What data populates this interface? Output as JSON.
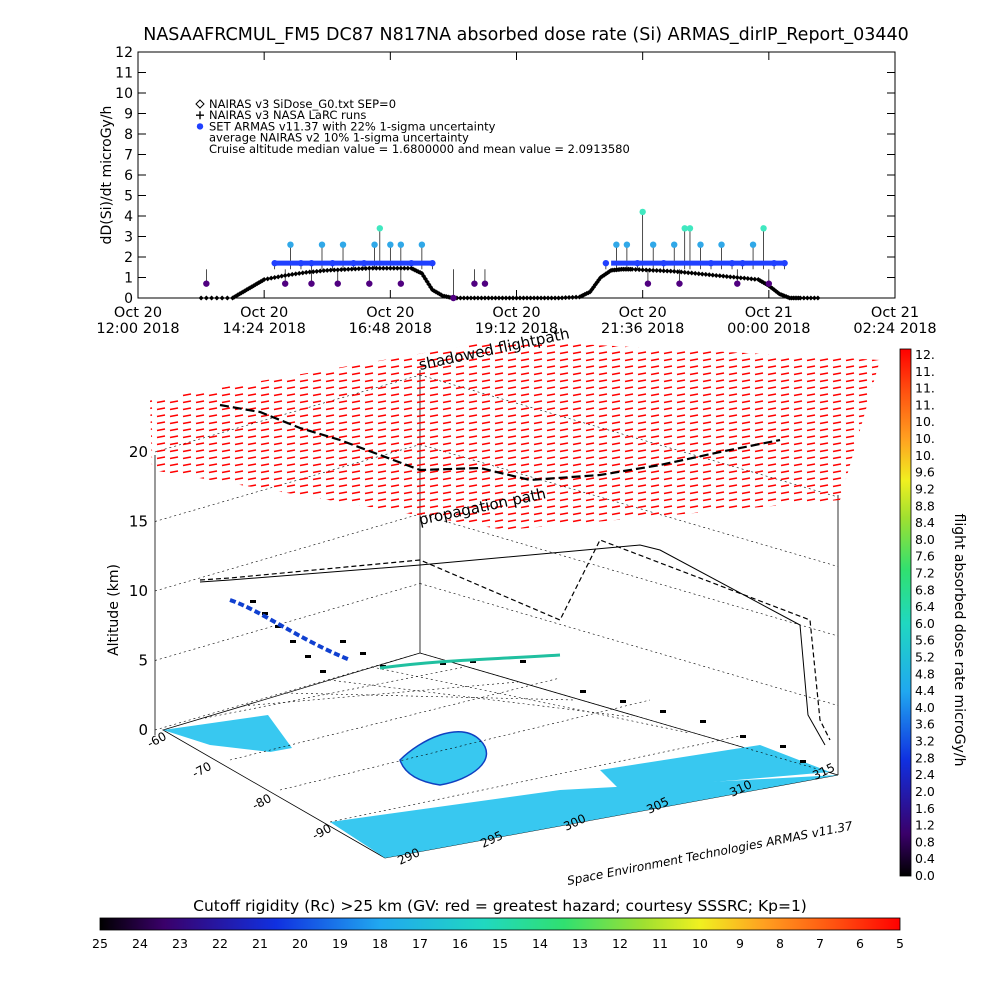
{
  "chart_data": [
    {
      "type": "scatter",
      "title": "NASAAFRCMUL_FM5 DC87 N817NA absorbed dose rate (Si) ARMAS_dirIP_Report_03440",
      "ylabel": "dD(Si)/dt microGy/h",
      "ylim": [
        0,
        12
      ],
      "yticks": [
        "0",
        "1",
        "2",
        "3",
        "4",
        "5",
        "6",
        "7",
        "8",
        "9",
        "10",
        "11",
        "12"
      ],
      "xlim_hours": [
        12.0,
        26.4
      ],
      "xticks": [
        {
          "line1": "Oct 20",
          "line2": "12:00 2018"
        },
        {
          "line1": "Oct 20",
          "line2": "14:24 2018"
        },
        {
          "line1": "Oct 20",
          "line2": "16:48 2018"
        },
        {
          "line1": "Oct 20",
          "line2": "19:12 2018"
        },
        {
          "line1": "Oct 20",
          "line2": "21:36 2018"
        },
        {
          "line1": "Oct 21",
          "line2": "00:00 2018"
        },
        {
          "line1": "Oct 21",
          "line2": "02:24 2018"
        }
      ],
      "legend": [
        {
          "symbol": "diamond",
          "text": "NAIRAS v3 SiDose_G0.txt SEP=0"
        },
        {
          "symbol": "plus",
          "text": "NAIRAS v3 NASA LaRC runs"
        },
        {
          "symbol": "filled-circle",
          "text": "SET ARMAS v11.37 with 22% 1-sigma uncertainty"
        },
        {
          "symbol": "none",
          "text": "average NAIRAS v2 10% 1-sigma uncertainty"
        },
        {
          "symbol": "none",
          "text": "Cruise altitude median value = 1.6800000 and mean value = 2.0913580"
        }
      ],
      "model_series": {
        "name": "NAIRAS v3 SiDose_G0.txt SEP=0",
        "x": [
          13.2,
          13.8,
          14.0,
          14.2,
          14.4,
          14.8,
          15.2,
          15.6,
          16.0,
          16.4,
          16.8,
          17.2,
          17.4,
          17.6,
          17.8,
          18.0,
          18.4,
          18.8,
          19.2,
          19.6,
          20.0,
          20.4,
          20.6,
          20.8,
          21.0,
          21.2,
          21.4,
          21.8,
          22.2,
          22.6,
          23.0,
          23.4,
          23.8,
          24.0,
          24.2,
          24.4,
          24.6,
          25.0
        ],
        "y": [
          0.0,
          0.0,
          0.3,
          0.6,
          0.9,
          1.1,
          1.25,
          1.35,
          1.4,
          1.45,
          1.45,
          1.45,
          1.2,
          0.4,
          0.1,
          0.0,
          0.0,
          0.0,
          0.0,
          0.0,
          0.0,
          0.05,
          0.3,
          1.0,
          1.35,
          1.4,
          1.4,
          1.35,
          1.3,
          1.2,
          1.1,
          1.0,
          0.9,
          0.6,
          0.2,
          0.0,
          0.0,
          0.0
        ]
      },
      "armas_series": {
        "name": "SET ARMAS v11.37 with 22% 1-sigma uncertainty",
        "x": [
          13.3,
          14.6,
          14.9,
          15.1,
          15.3,
          15.5,
          15.7,
          15.9,
          16.1,
          16.3,
          16.5,
          16.6,
          16.8,
          17.0,
          17.2,
          17.4,
          17.6,
          18.0,
          18.4,
          18.6,
          20.9,
          21.1,
          21.3,
          21.5,
          21.6,
          21.8,
          22.0,
          22.2,
          22.4,
          22.5,
          22.7,
          22.9,
          23.1,
          23.3,
          23.5,
          23.7,
          23.9,
          24.1,
          24.3,
          14.8,
          15.3,
          15.8,
          16.4,
          17.0,
          21.7,
          22.3,
          23.4,
          24.0
        ],
        "y": [
          0.7,
          1.7,
          2.6,
          1.7,
          1.7,
          2.6,
          1.7,
          2.6,
          1.7,
          1.7,
          2.6,
          3.4,
          2.6,
          2.6,
          1.7,
          2.6,
          1.7,
          0.0,
          0.7,
          0.7,
          1.7,
          2.6,
          2.6,
          1.7,
          4.2,
          2.6,
          1.7,
          2.6,
          3.4,
          3.4,
          2.6,
          1.7,
          2.6,
          1.7,
          1.7,
          2.6,
          3.4,
          1.7,
          1.7,
          0.7,
          0.7,
          0.7,
          0.7,
          0.7,
          0.7,
          0.7,
          0.7,
          0.7
        ]
      }
    },
    {
      "type": "scatter",
      "subtype": "3d-flight-track",
      "zlabel": "Altitude (km)",
      "zticks": [
        "0",
        "5",
        "10",
        "15",
        "20"
      ],
      "yticks": [
        "-60",
        "-70",
        "-80",
        "-90"
      ],
      "xticks": [
        "290",
        "295",
        "300",
        "305",
        "310",
        "315"
      ],
      "annotations": [
        "shadowed flightpath",
        "propagation path"
      ],
      "credit": "Space Environment Technologies ARMAS v11.37",
      "track": {
        "x": [
          318.0,
          316.5,
          315.0,
          313.0,
          311.0,
          309.0,
          307.0,
          305.0,
          303.5,
          302.0,
          300.5,
          299.0,
          297.5,
          296.0,
          294.5,
          293.0,
          292.0,
          291.0,
          290.0,
          289.0
        ],
        "y": [
          -63.0,
          -66.0,
          -70.0,
          -74.0,
          -77.0,
          -79.0,
          -80.5,
          -81.5,
          -82.0,
          -82.5,
          -83.0,
          -84.0,
          -85.0,
          -86.0,
          -87.0,
          -88.0,
          -89.0,
          -90.0,
          -90.5,
          -91.0
        ],
        "z": [
          11.0,
          11.0,
          11.0,
          11.0,
          11.0,
          11.0,
          11.0,
          11.0,
          11.0,
          11.0,
          10.8,
          10.5,
          10.3,
          10.0,
          9.8,
          9.5,
          9.0,
          8.5,
          7.0,
          5.0
        ]
      }
    }
  ],
  "colorbar_right": {
    "label": "flight absorbed dose rate microGy/h",
    "ticks": [
      "12.",
      "11.",
      "11.",
      "11.",
      "10.",
      "10.",
      "10.",
      "9.6",
      "9.2",
      "8.8",
      "8.4",
      "8.0",
      "7.6",
      "7.2",
      "6.8",
      "6.4",
      "6.0",
      "5.6",
      "5.2",
      "4.8",
      "4.4",
      "4.0",
      "3.6",
      "3.2",
      "2.8",
      "2.4",
      "2.0",
      "1.6",
      "1.2",
      "0.8",
      "0.4",
      "0.0"
    ]
  },
  "colorbar_bottom": {
    "label": "Cutoff rigidity (Rc) >25 km (GV: red = greatest hazard; courtesy SSSRC; Kp=1)",
    "ticks": [
      "25",
      "24",
      "23",
      "22",
      "21",
      "20",
      "19",
      "18",
      "17",
      "16",
      "15",
      "14",
      "13",
      "12",
      "11",
      "10",
      "9",
      "8",
      "7",
      "6",
      "5"
    ]
  },
  "colors": {
    "diamond": "#000000",
    "armas_low": "#2040ff",
    "armas_mid": "#30a8e8",
    "armas_high": "#40e8c0",
    "armas_purple": "#500080",
    "surface": "#38c8f0",
    "hazard_red": "#ff0000"
  }
}
